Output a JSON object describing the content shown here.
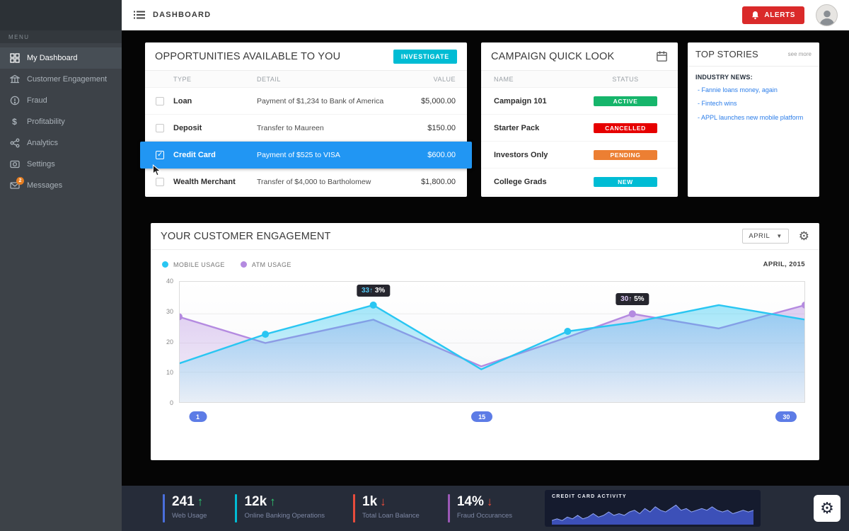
{
  "colors": {
    "accent_cyan": "#00bcd4",
    "selected_row_blue": "#2196f3",
    "alert_red": "#da2a2a"
  },
  "topbar": {
    "title": "DASHBOARD",
    "alerts_label": "ALERTS"
  },
  "sidebar": {
    "menu_label": "MENU",
    "items": [
      {
        "label": "My Dashboard",
        "active": true
      },
      {
        "label": "Customer Engagement",
        "active": false
      },
      {
        "label": "Fraud",
        "active": false
      },
      {
        "label": "Profitability",
        "active": false
      },
      {
        "label": "Analytics",
        "active": false
      },
      {
        "label": "Settings",
        "active": false
      },
      {
        "label": "Messages",
        "active": false,
        "badge": "2"
      }
    ]
  },
  "opportunities": {
    "title": "OPPORTUNITIES AVAILABLE TO YOU",
    "action_label": "INVESTIGATE",
    "columns": {
      "type": "TYPE",
      "detail": "DETAIL",
      "value": "VALUE"
    },
    "rows": [
      {
        "type": "Loan",
        "detail": "Payment of $1,234 to Bank of America",
        "value": "$5,000.00",
        "selected": false
      },
      {
        "type": "Deposit",
        "detail": "Transfer to Maureen",
        "value": "$150.00",
        "selected": false
      },
      {
        "type": "Credit Card",
        "detail": "Payment of $525 to VISA",
        "value": "$600.00",
        "selected": true
      },
      {
        "type": "Wealth Merchant",
        "detail": "Transfer of $4,000 to Bartholomew",
        "value": "$1,800.00",
        "selected": false
      }
    ]
  },
  "campaigns": {
    "title": "CAMPAIGN QUICK LOOK",
    "columns": {
      "name": "NAME",
      "status": "STATUS"
    },
    "rows": [
      {
        "name": "Campaign 101",
        "status": "ACTIVE",
        "status_color": "#16b56b"
      },
      {
        "name": "Starter Pack",
        "status": "CANCELLED",
        "status_color": "#e60000"
      },
      {
        "name": "Investors Only",
        "status": "PENDING",
        "status_color": "#ec7f33"
      },
      {
        "name": "College Grads",
        "status": "NEW",
        "status_color": "#00bcd4"
      }
    ]
  },
  "top_stories": {
    "title": "TOP STORIES",
    "see_more": "see more",
    "heading": "INDUSTRY NEWS:",
    "links": [
      "- Fannie loans money, again",
      "- Fintech wins",
      "- APPL launches new mobile platform"
    ]
  },
  "engagement": {
    "title": "YOUR CUSTOMER ENGAGEMENT",
    "month_selector": "APRIL",
    "date_label": "APRIL, 2015",
    "legend": [
      {
        "label": "MOBILE USAGE",
        "color": "#29c6f2"
      },
      {
        "label": "ATM USAGE",
        "color": "#b48ae0"
      }
    ]
  },
  "chart_data": [
    {
      "type": "area",
      "title": "YOUR CUSTOMER ENGAGEMENT",
      "x": [
        1,
        5,
        10,
        15,
        19,
        22,
        26,
        30
      ],
      "x_label_pills": [
        1,
        15,
        30
      ],
      "pill_color": "#5d7ce6",
      "ylim": [
        0,
        40
      ],
      "yticks": [
        0,
        10,
        20,
        30,
        40
      ],
      "grid": true,
      "legend_position": "top-left",
      "series": [
        {
          "name": "ATM USAGE",
          "color": "#b48ae0",
          "values": [
            29,
            20,
            28,
            12,
            22,
            30,
            25,
            33
          ],
          "markers": [
            0,
            5,
            7
          ]
        },
        {
          "name": "MOBILE USAGE",
          "color": "#29c6f2",
          "values": [
            13,
            23,
            33,
            11,
            24,
            27,
            33,
            28
          ],
          "markers": [
            1,
            2,
            4
          ]
        }
      ],
      "annotations": [
        {
          "series": "MOBILE USAGE",
          "x_index": 2,
          "value_label": "33↑",
          "pct_label": "3%",
          "value_color": "#53c9f5"
        },
        {
          "series": "ATM USAGE",
          "x_index": 5,
          "value_label": "30↑",
          "pct_label": "5%",
          "value_color": "#ddc9f7"
        }
      ]
    },
    {
      "type": "area",
      "title": "CREDIT CARD ACTIVITY",
      "values": [
        2,
        3,
        2,
        4,
        3,
        5,
        3,
        4,
        6,
        4,
        5,
        7,
        5,
        6,
        5,
        7,
        8,
        6,
        9,
        7,
        10,
        8,
        7,
        9,
        11,
        8,
        9,
        7,
        8,
        9,
        8,
        10,
        8,
        7,
        8,
        6,
        7,
        8,
        7,
        8
      ],
      "ylim": [
        0,
        12
      ],
      "fill_color": "#4056c8",
      "line_color": "#93a7f2"
    }
  ],
  "footer": {
    "stats": [
      {
        "value": "241",
        "arrow": "↑",
        "arrow_color": "#2ecc71",
        "label": "Web Usage",
        "accent": "#4a6fdc"
      },
      {
        "value": "12k",
        "arrow": "↑",
        "arrow_color": "#2ecc71",
        "label": "Online Banking Operations",
        "accent": "#00bcd4"
      },
      {
        "value": "1k",
        "arrow": "↓",
        "arrow_color": "#e74c3c",
        "label": "Total Loan Balance",
        "accent": "#e74c3c"
      },
      {
        "value": "14%",
        "arrow": "↓",
        "arrow_color": "#e74c3c",
        "label": "Fraud Occurances",
        "accent": "#9b59b6"
      }
    ],
    "mini_chart_title": "CREDIT CARD ACTIVITY"
  }
}
